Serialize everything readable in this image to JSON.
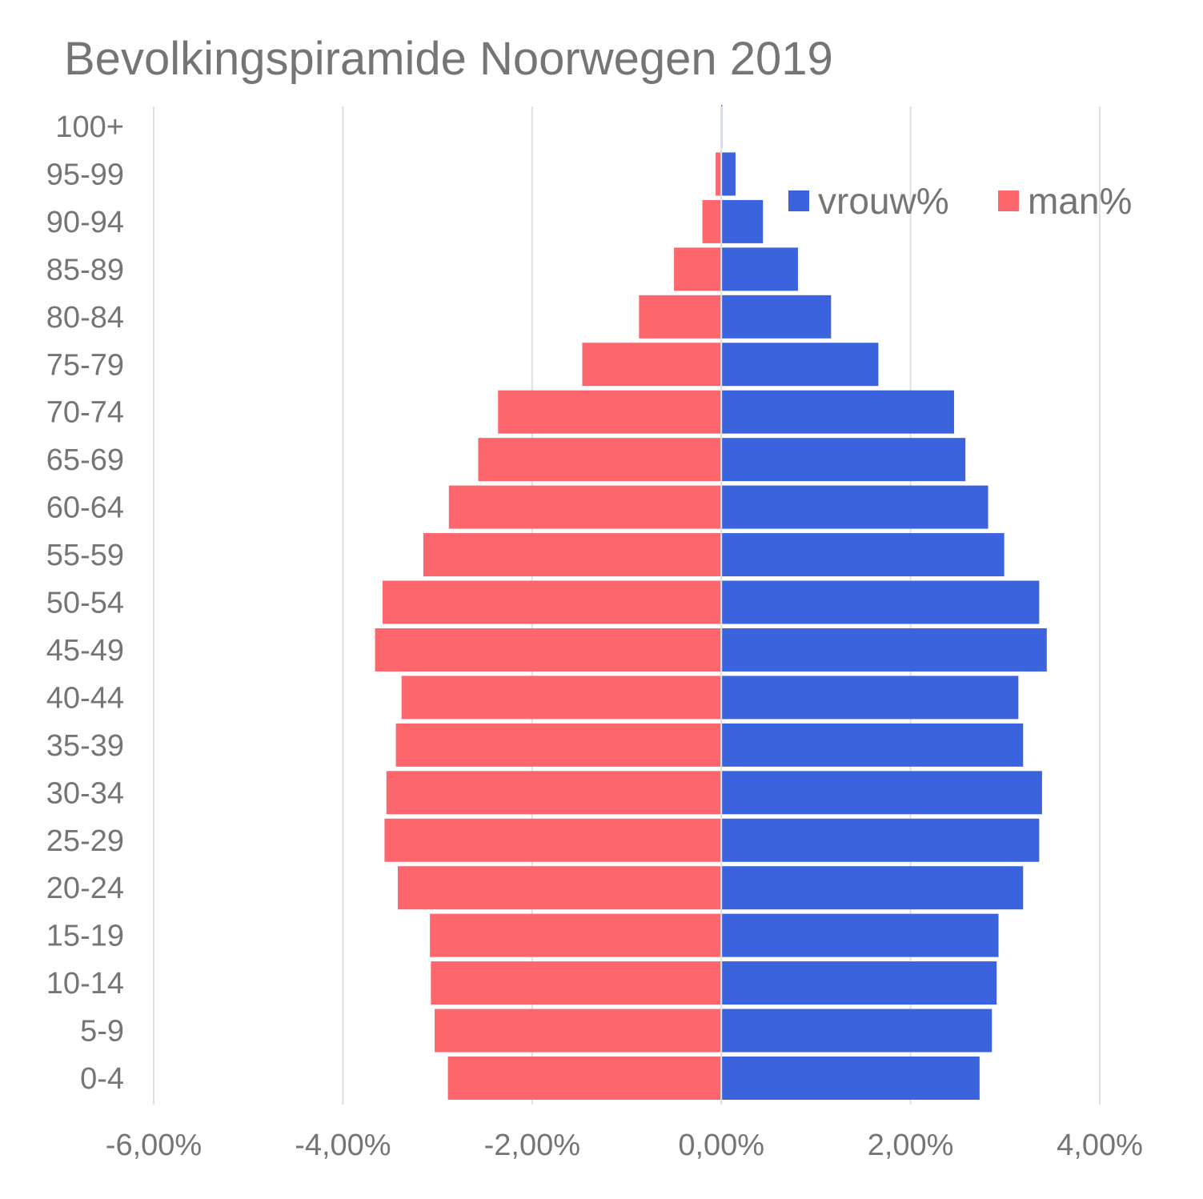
{
  "chart_data": {
    "type": "bar",
    "orientation": "horizontal",
    "stacked": true,
    "title": "Bevolkingspiramide Noorwegen 2019",
    "categories": [
      "100+",
      "95-99",
      "90-94",
      "85-89",
      "80-84",
      "75-79",
      "70-74",
      "65-69",
      "60-64",
      "55-59",
      "50-54",
      "45-49",
      "40-44",
      "35-39",
      "30-34",
      "25-29",
      "20-24",
      "15-19",
      "10-14",
      "5-9",
      "0-4"
    ],
    "series": [
      {
        "name": "vrouw%",
        "color": "#3b63de",
        "values": [
          0.01,
          0.15,
          0.44,
          0.81,
          1.16,
          1.66,
          2.46,
          2.58,
          2.82,
          2.99,
          3.36,
          3.44,
          3.14,
          3.19,
          3.39,
          3.36,
          3.19,
          2.93,
          2.91,
          2.86,
          2.73
        ]
      },
      {
        "name": "man%",
        "color": "#fc666c",
        "values": [
          0,
          -0.06,
          -0.2,
          -0.5,
          -0.87,
          -1.47,
          -2.36,
          -2.57,
          -2.88,
          -3.15,
          -3.58,
          -3.66,
          -3.38,
          -3.44,
          -3.54,
          -3.56,
          -3.42,
          -3.08,
          -3.07,
          -3.03,
          -2.89
        ]
      }
    ],
    "xlim": [
      -6,
      4
    ],
    "xticks": [
      -6,
      -4,
      -2,
      0,
      2,
      4
    ],
    "xtick_labels": [
      "-6,00%",
      "-4,00%",
      "-2,00%",
      "0,00%",
      "2,00%",
      "4,00%"
    ],
    "xlabel": "",
    "ylabel": "",
    "grid": true,
    "legend_position": "top-right"
  }
}
